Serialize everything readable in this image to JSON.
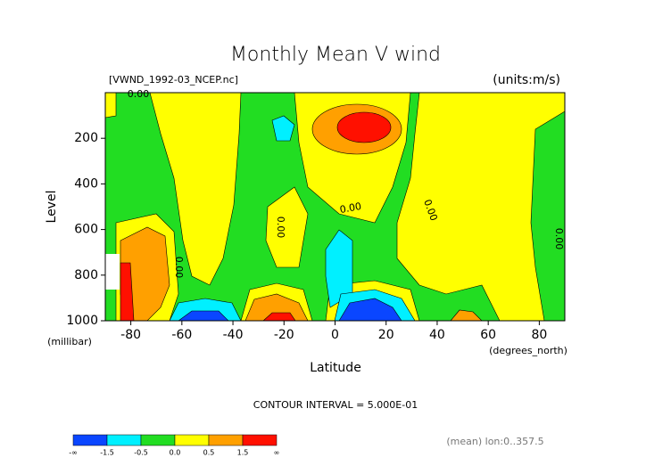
{
  "chart_data": {
    "type": "contour",
    "title": "Monthly Mean V wind",
    "source_label": "[VWND_1992-03_NCEP.nc]",
    "units_label": "(units:m/s)",
    "y_label": "Level",
    "y_unit": "(millibar)",
    "x_label": "Latitude",
    "x_unit": "(degrees_north)",
    "xlim": [
      -90,
      90
    ],
    "xticks": [
      -80,
      -60,
      -40,
      -20,
      0,
      20,
      40,
      60,
      80
    ],
    "ylim": [
      1000,
      0
    ],
    "yticks": [
      200,
      400,
      600,
      800,
      1000
    ],
    "contour_labels": [
      "0.00",
      "0.00",
      "0.00",
      "0.00",
      "0.00",
      "0.00"
    ],
    "contour_interval": "CONTOUR INTERVAL = 5.000E-01",
    "footer": "(mean) lon:0..357.5",
    "colorbar": {
      "labels": [
        "-∞",
        "-1.5",
        "-0.5",
        "0.0",
        "0.5",
        "1.5",
        "∞"
      ],
      "colors": [
        "#0a46ff",
        "#00f0ff",
        "#22dd22",
        "#ffff00",
        "#ffa000",
        "#ff1000"
      ]
    }
  }
}
